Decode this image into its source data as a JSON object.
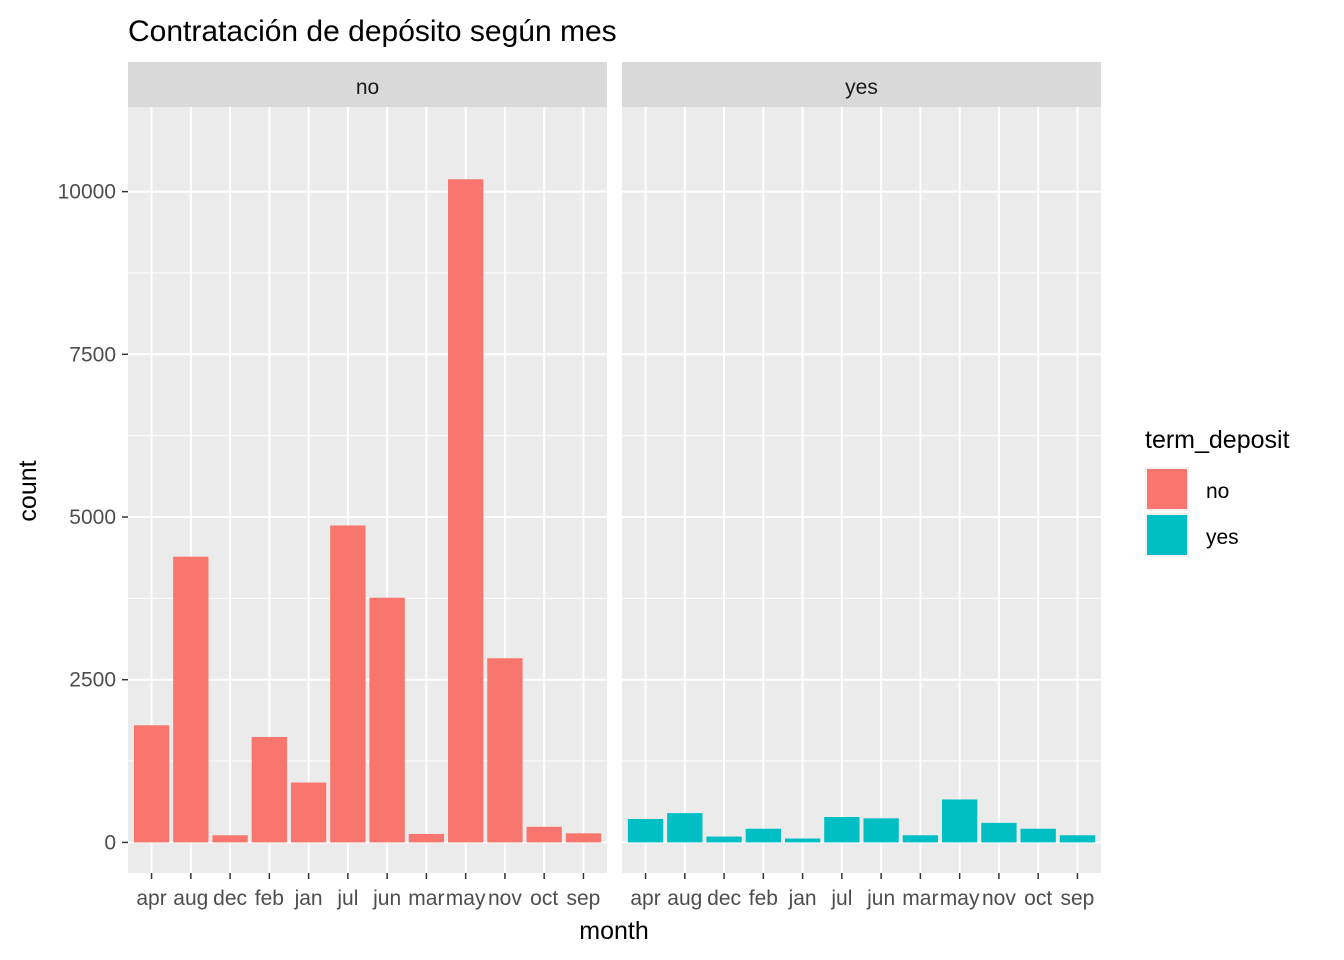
{
  "chart_data": {
    "type": "bar",
    "title": "Contratación de depósito según mes",
    "xlabel": "month",
    "ylabel": "count",
    "facet_by": "term_deposit",
    "categories": [
      "apr",
      "aug",
      "dec",
      "feb",
      "jan",
      "jul",
      "jun",
      "mar",
      "may",
      "nov",
      "oct",
      "sep"
    ],
    "ylim": [
      -470,
      11300
    ],
    "yticks": [
      0,
      2500,
      5000,
      7500,
      10000
    ],
    "grid": true,
    "legend": {
      "title": "term_deposit",
      "position": "right",
      "entries": [
        {
          "label": "no",
          "color": "#F8766D"
        },
        {
          "label": "yes",
          "color": "#00BFC4"
        }
      ]
    },
    "series": [
      {
        "name": "no",
        "facet": "no",
        "color": "#F8766D",
        "values": [
          1800,
          4390,
          110,
          1620,
          920,
          4870,
          3760,
          130,
          10190,
          2830,
          240,
          140
        ]
      },
      {
        "name": "yes",
        "facet": "yes",
        "color": "#00BFC4",
        "values": [
          360,
          450,
          90,
          210,
          60,
          390,
          370,
          110,
          660,
          300,
          210,
          110
        ]
      }
    ]
  }
}
